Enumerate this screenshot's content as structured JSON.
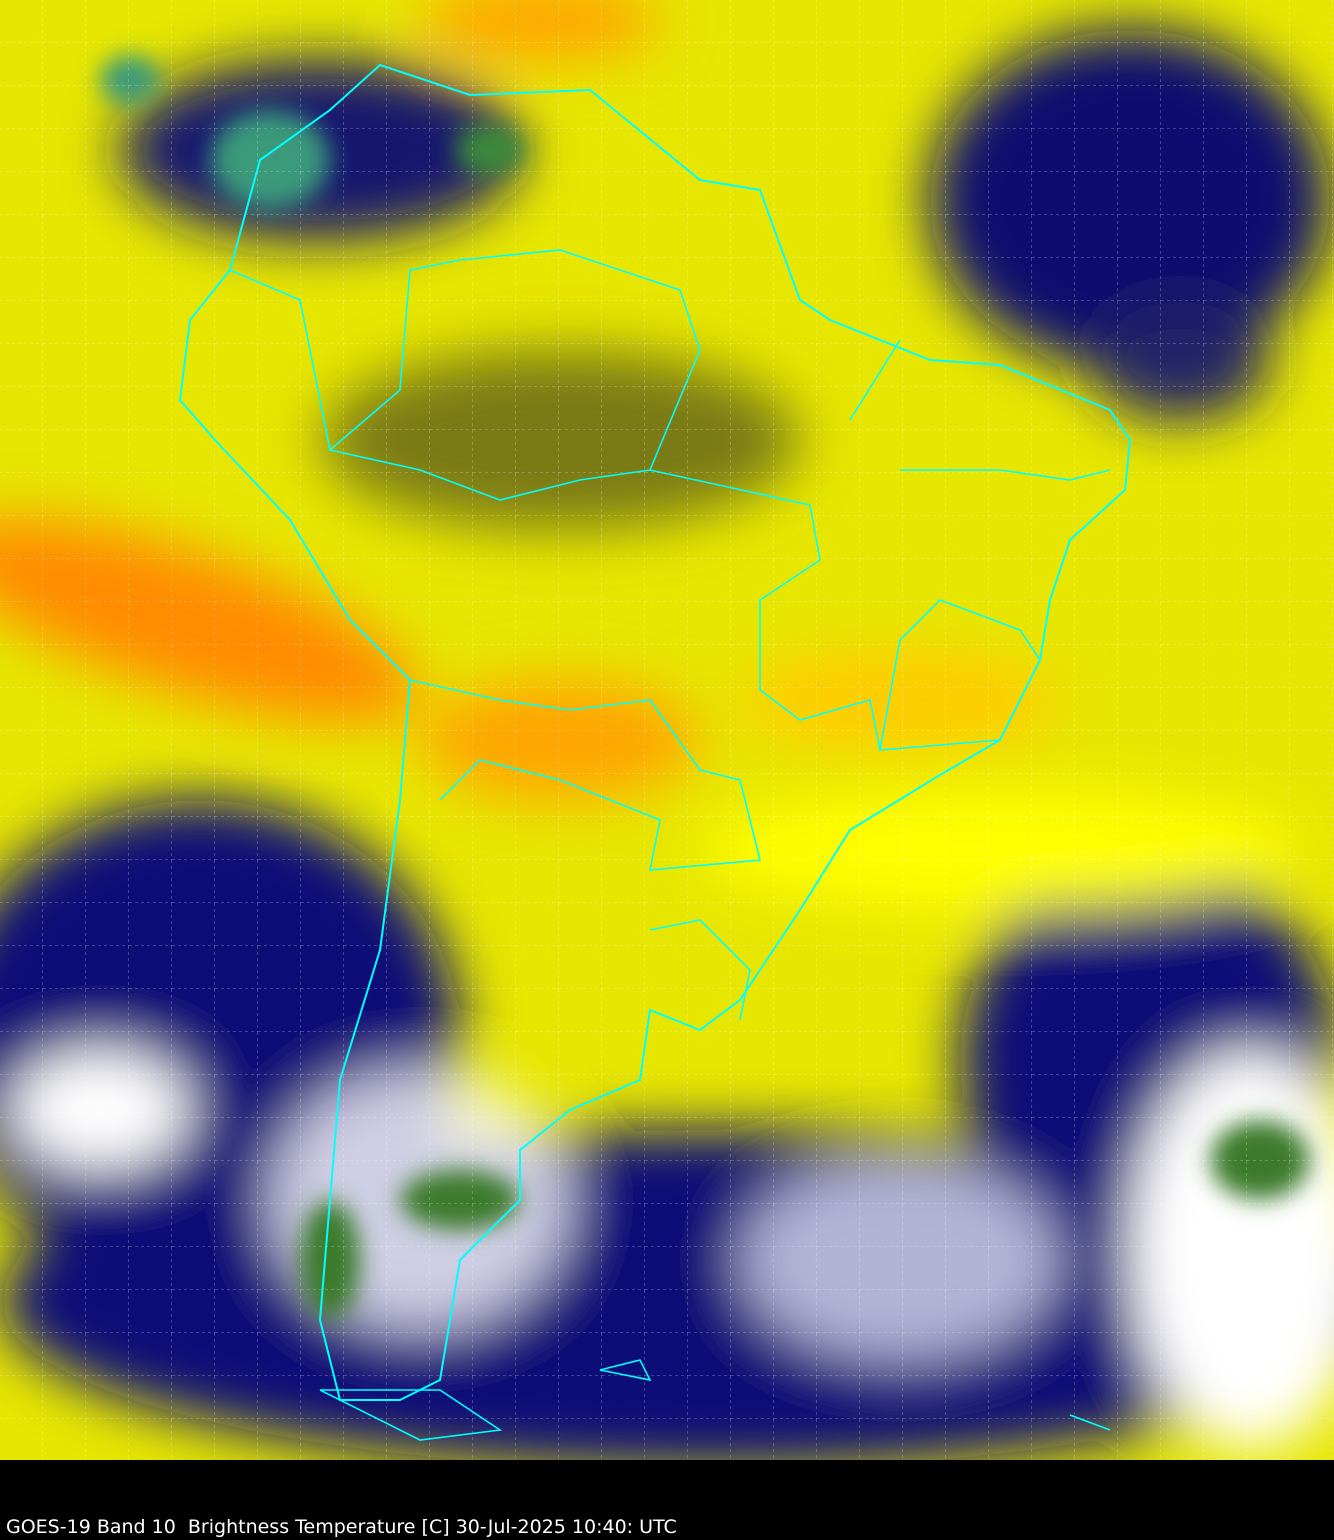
{
  "caption": "GOES-19 Band 10  Brightness Temperature [C] 30-Jul-2025 10:40: UTC",
  "satellite": "GOES-19",
  "band": "Band 10",
  "product": "Brightness Temperature [C]",
  "datetime": "30-Jul-2025 10:40: UTC",
  "colors": {
    "warm": "#ffff00",
    "hot": "#ff8c00",
    "moist": "#5a5a10",
    "cold": "#0a0a78",
    "very_cold": "#ffffff",
    "coldest": "#3a7a2a",
    "borders": "#00ffff",
    "grid": "#ffffff",
    "background": "#000000"
  },
  "overlays": {
    "grid": true,
    "country_borders": true,
    "state_borders": true
  }
}
